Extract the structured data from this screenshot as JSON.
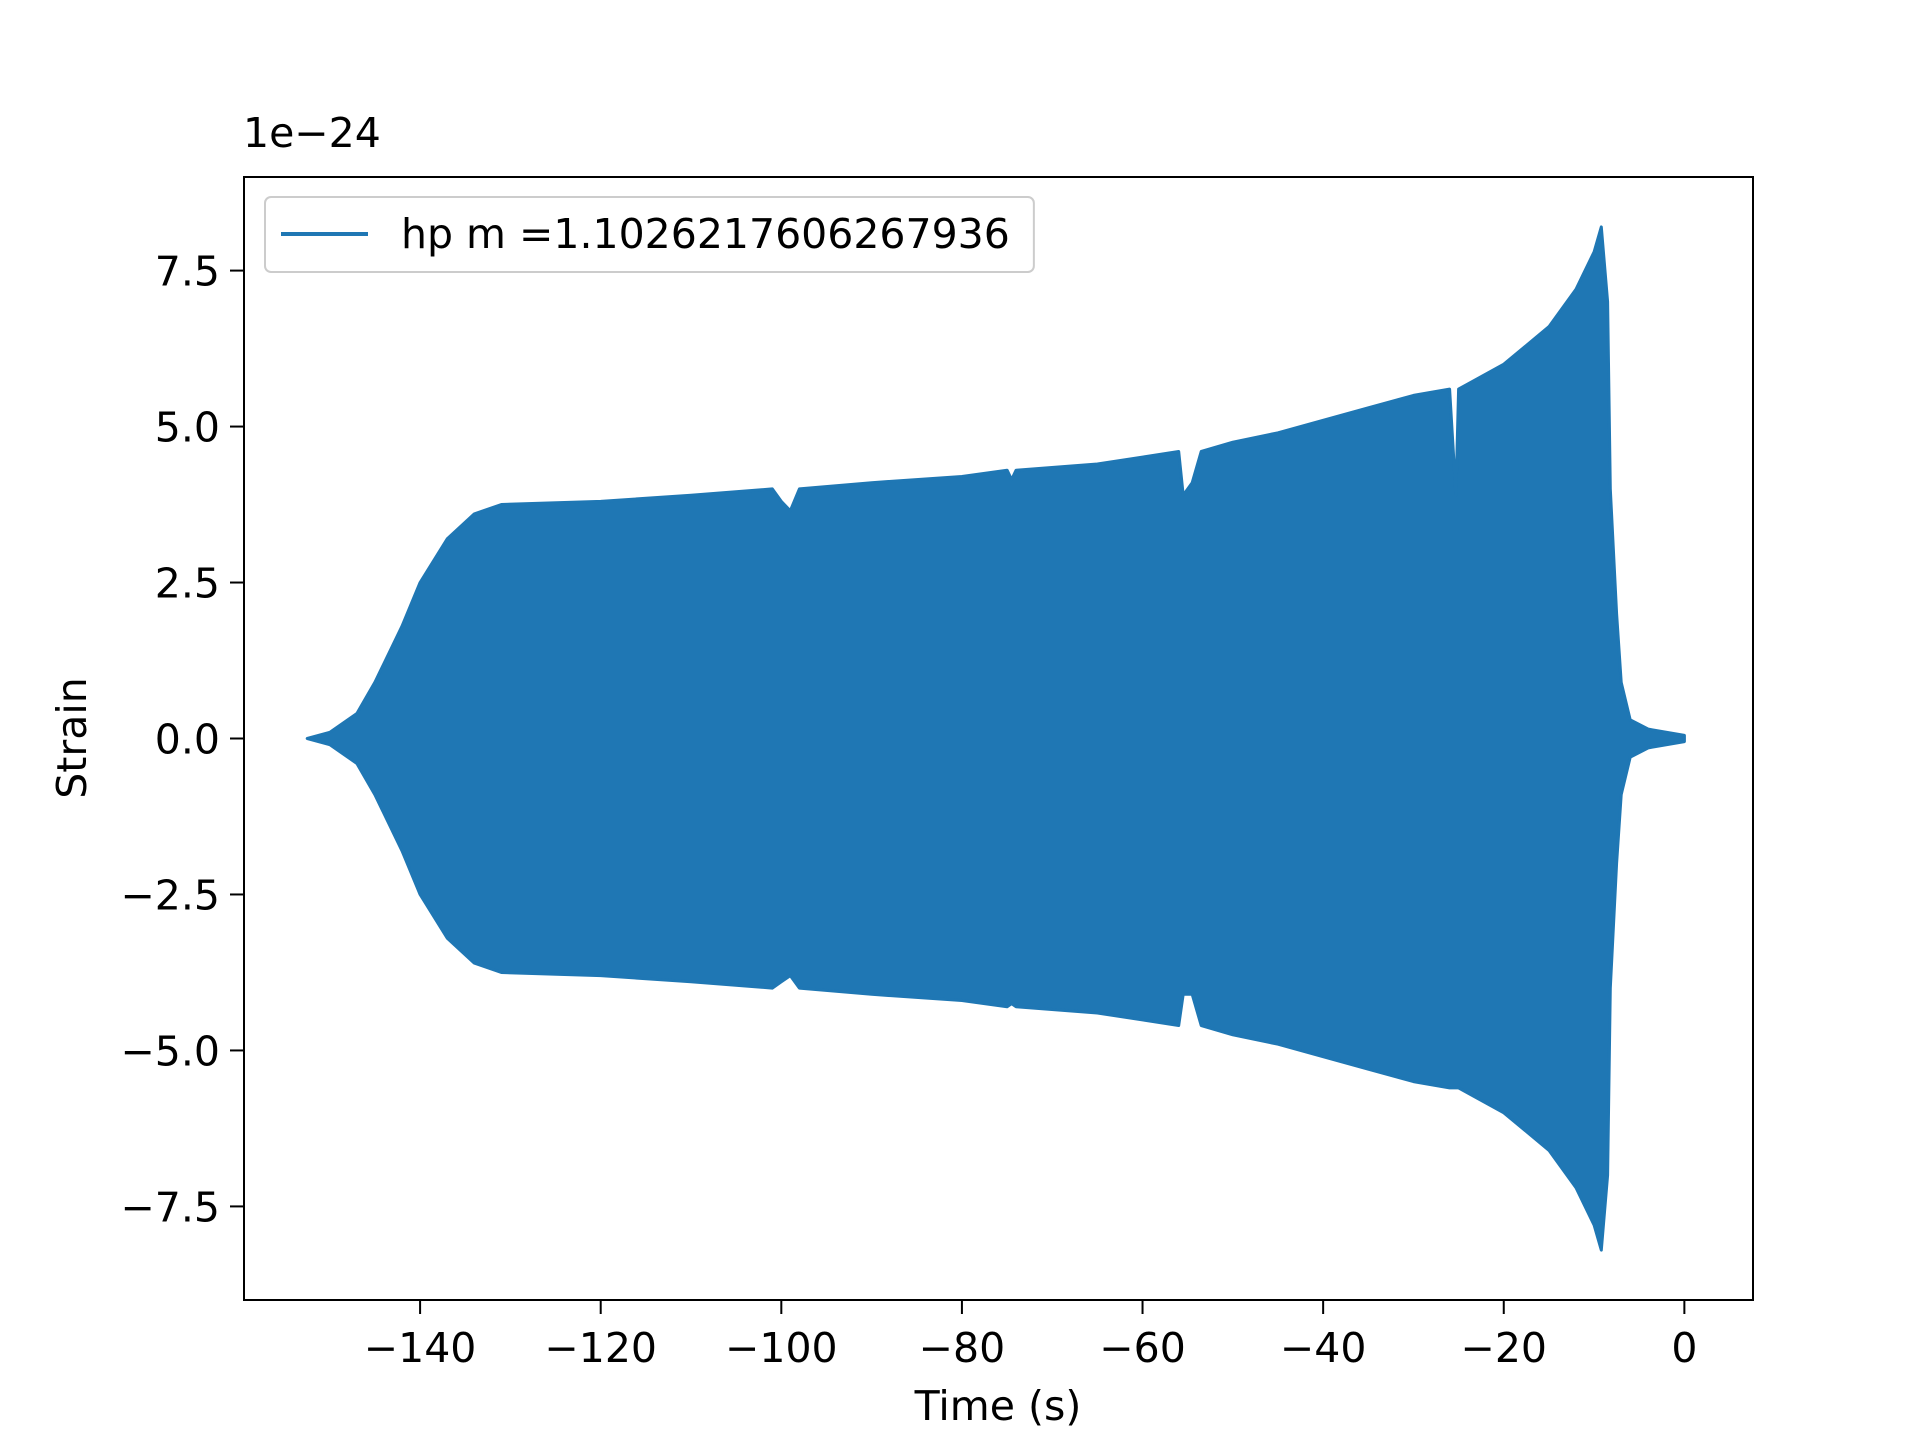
{
  "chart_data": {
    "type": "envelope",
    "x_label": "Time (s)",
    "y_label": "Strain",
    "y_offset_label": "1e−24",
    "x": [
      -152.5,
      -150,
      -147,
      -145,
      -142,
      -140,
      -137,
      -134,
      -131,
      -120,
      -110,
      -101,
      -100,
      -99,
      -98,
      -90,
      -80,
      -75,
      -74.5,
      -74,
      -65,
      -56,
      -55.5,
      -54.5,
      -53.5,
      -50,
      -45,
      -40,
      -35,
      -30,
      -26,
      -25.3,
      -25,
      -20,
      -15,
      -12,
      -10,
      -9.2,
      -8.5,
      -8.2,
      -7.5,
      -7,
      -6,
      -4,
      0
    ],
    "series": [
      {
        "name": "hp m =1.1026217606267936",
        "color": "#1f77b4",
        "upper": [
          0,
          0.1,
          0.4,
          0.9,
          1.8,
          2.5,
          3.2,
          3.6,
          3.75,
          3.8,
          3.9,
          4.0,
          3.8,
          3.65,
          4.0,
          4.1,
          4.2,
          4.3,
          4.15,
          4.3,
          4.4,
          4.6,
          3.9,
          4.1,
          4.6,
          4.75,
          4.9,
          5.1,
          5.3,
          5.5,
          5.6,
          3.9,
          5.6,
          6.0,
          6.6,
          7.2,
          7.8,
          8.2,
          7.0,
          4.0,
          2.0,
          0.9,
          0.3,
          0.15,
          0.05
        ],
        "lower": [
          0,
          -0.1,
          -0.4,
          -0.9,
          -1.8,
          -2.5,
          -3.2,
          -3.6,
          -3.75,
          -3.8,
          -3.9,
          -4.0,
          -3.9,
          -3.8,
          -4.0,
          -4.1,
          -4.2,
          -4.3,
          -4.25,
          -4.3,
          -4.4,
          -4.6,
          -4.1,
          -4.1,
          -4.6,
          -4.75,
          -4.9,
          -5.1,
          -5.3,
          -5.5,
          -5.6,
          -5.6,
          -5.6,
          -6.0,
          -6.6,
          -7.2,
          -7.8,
          -8.2,
          -7.0,
          -4.0,
          -2.0,
          -0.9,
          -0.3,
          -0.15,
          -0.05
        ]
      }
    ],
    "xlim": [
      -159.5,
      7.6
    ],
    "ylim": [
      -9,
      9
    ],
    "xticks": [
      {
        "value": -140,
        "label": "−140"
      },
      {
        "value": -120,
        "label": "−120"
      },
      {
        "value": -100,
        "label": "−100"
      },
      {
        "value": -80,
        "label": "−80"
      },
      {
        "value": -60,
        "label": "−60"
      },
      {
        "value": -40,
        "label": "−40"
      },
      {
        "value": -20,
        "label": "−20"
      },
      0
    ],
    "yticks": [
      {
        "value": -7.5,
        "label": "−7.5"
      },
      {
        "value": -5,
        "label": "−5.0"
      },
      {
        "value": -2.5,
        "label": "−2.5"
      },
      {
        "value": 0,
        "label": "0.0"
      },
      2.5,
      {
        "value": 5,
        "label": "5.0"
      },
      7.5
    ],
    "grid": false,
    "legend": "upper left"
  }
}
